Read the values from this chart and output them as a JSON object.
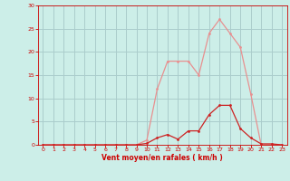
{
  "x_avg": [
    0,
    1,
    2,
    3,
    4,
    5,
    6,
    7,
    8,
    9,
    10,
    11,
    12,
    13,
    14,
    15,
    16,
    17,
    18,
    19,
    20,
    21,
    22,
    23
  ],
  "y_avg": [
    0,
    0,
    0,
    0,
    0,
    0,
    0,
    0,
    0,
    0,
    0.3,
    1.5,
    2.2,
    1.2,
    3,
    3,
    6.5,
    8.5,
    8.5,
    3.5,
    1.5,
    0.2,
    0.2,
    0
  ],
  "x_gust": [
    0,
    1,
    2,
    3,
    4,
    5,
    6,
    7,
    8,
    9,
    10,
    11,
    12,
    13,
    14,
    15,
    16,
    17,
    18,
    19,
    20,
    21,
    22,
    23
  ],
  "y_gust": [
    0,
    0,
    0,
    0,
    0,
    0,
    0,
    0,
    0,
    0,
    1,
    12,
    18,
    18,
    18,
    15,
    24,
    27,
    24,
    21,
    11,
    0,
    0,
    0
  ],
  "color_avg": "#cc2222",
  "color_gust": "#e89090",
  "bg_color": "#cceee8",
  "grid_color": "#aacccc",
  "xlabel": "Vent moyen/en rafales ( km/h )",
  "xlabel_color": "#cc0000",
  "tick_color": "#cc0000",
  "xlim": [
    -0.5,
    23.5
  ],
  "ylim": [
    0,
    30
  ],
  "yticks": [
    0,
    5,
    10,
    15,
    20,
    25,
    30
  ],
  "xticks": [
    0,
    1,
    2,
    3,
    4,
    5,
    6,
    7,
    8,
    9,
    10,
    11,
    12,
    13,
    14,
    15,
    16,
    17,
    18,
    19,
    20,
    21,
    22,
    23
  ]
}
